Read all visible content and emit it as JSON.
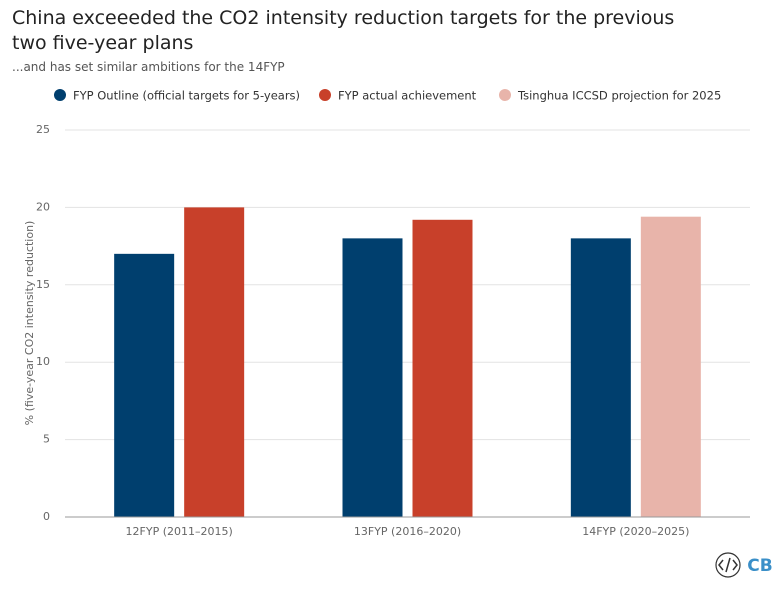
{
  "chart_data": {
    "type": "bar",
    "title": "China exceeeded the CO2 intensity reduction targets for the previous two five-year plans",
    "subtitle": "...and has set similar ambitions for the 14FYP",
    "y_label": "% (five-year CO2 intensity reduction)",
    "categories": [
      "12FYP (2011–2015)",
      "13FYP (2016–2020)",
      "14FYP (2020–2025)"
    ],
    "series": [
      {
        "name": "FYP Outline (official targets for 5-years)",
        "color": "#003f6e",
        "values": [
          17,
          18,
          18
        ]
      },
      {
        "name": "FYP actual achievement",
        "color": "#c8402a",
        "values": [
          20,
          19.2,
          null
        ]
      },
      {
        "name": "Tsinghua ICCSD projection for 2025",
        "color": "#e8b4aa",
        "values": [
          null,
          null,
          19.4
        ]
      }
    ],
    "ylim": [
      0,
      25
    ],
    "yticks": [
      0,
      5,
      10,
      15,
      20,
      25
    ],
    "grid": true,
    "logo": "CB"
  }
}
